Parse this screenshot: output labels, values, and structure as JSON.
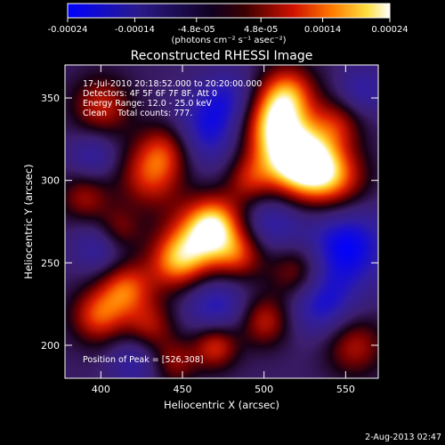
{
  "chart_data": {
    "type": "heatmap",
    "title": "Reconstructed RHESSI Image",
    "xlabel": "Heliocentric X (arcsec)",
    "ylabel": "Heliocentric Y (arcsec)",
    "xlim": [
      378,
      570
    ],
    "ylim": [
      180,
      370
    ],
    "xticks": [
      "400",
      "450",
      "500",
      "550"
    ],
    "xtick_values": [
      400,
      450,
      500,
      550
    ],
    "yticks": [
      "200",
      "250",
      "300",
      "350"
    ],
    "ytick_values": [
      200,
      250,
      300,
      350
    ],
    "colorbar": {
      "range": [
        -0.00024,
        0.00024
      ],
      "ticks": [
        "-0.00024",
        "-0.00014",
        "-4.8e-05",
        "4.8e-05",
        "0.00014",
        "0.00024"
      ],
      "tick_values": [
        -0.00024,
        -0.00014,
        -4.8e-05,
        4.8e-05,
        0.00014,
        0.00024
      ],
      "unit_label": "(photons cm⁻² s⁻¹ asec⁻²)",
      "colors": [
        "#0000ff",
        "#1a1a7a",
        "#000000",
        "#7a0000",
        "#ff3000",
        "#ffa000",
        "#ffff80",
        "#ffffff"
      ]
    },
    "annotations": [
      "17-Jul-2010 20:18:52.000 to 20:20:00.000",
      "Detectors: 4F 5F 6F 7F 8F, Att 0",
      "Energy Range: 12.0 - 25.0 keV",
      "Clean    Total counts: 777."
    ],
    "peak_label": "Position of Peak = [526,308]",
    "peak_position": [
      526,
      308
    ],
    "blobs": [
      {
        "x": 526,
        "y": 309,
        "amp": 1.0,
        "r": 15
      },
      {
        "x": 510,
        "y": 320,
        "amp": 0.8,
        "r": 18
      },
      {
        "x": 505,
        "y": 340,
        "amp": 0.7,
        "r": 14
      },
      {
        "x": 515,
        "y": 355,
        "amp": 0.6,
        "r": 12
      },
      {
        "x": 545,
        "y": 300,
        "amp": 0.6,
        "r": 14
      },
      {
        "x": 460,
        "y": 262,
        "amp": 0.85,
        "r": 16
      },
      {
        "x": 470,
        "y": 275,
        "amp": 0.7,
        "r": 12
      },
      {
        "x": 445,
        "y": 250,
        "amp": 0.6,
        "r": 12
      },
      {
        "x": 485,
        "y": 255,
        "amp": 0.55,
        "r": 11
      },
      {
        "x": 430,
        "y": 303,
        "amp": 0.65,
        "r": 14
      },
      {
        "x": 440,
        "y": 320,
        "amp": 0.55,
        "r": 12
      },
      {
        "x": 415,
        "y": 235,
        "amp": 0.75,
        "r": 12
      },
      {
        "x": 398,
        "y": 218,
        "amp": 0.7,
        "r": 12
      },
      {
        "x": 430,
        "y": 212,
        "amp": 0.5,
        "r": 11
      },
      {
        "x": 470,
        "y": 200,
        "amp": 0.7,
        "r": 10
      },
      {
        "x": 500,
        "y": 215,
        "amp": 0.6,
        "r": 11
      },
      {
        "x": 520,
        "y": 245,
        "amp": 0.55,
        "r": 12
      },
      {
        "x": 555,
        "y": 200,
        "amp": 0.55,
        "r": 13
      },
      {
        "x": 400,
        "y": 345,
        "amp": 0.6,
        "r": 13
      },
      {
        "x": 390,
        "y": 290,
        "amp": 0.5,
        "r": 11
      },
      {
        "x": 410,
        "y": 270,
        "amp": 0.5,
        "r": 10
      },
      {
        "x": 545,
        "y": 335,
        "amp": 0.45,
        "r": 11
      },
      {
        "x": 490,
        "y": 300,
        "amp": 0.4,
        "r": 10
      },
      {
        "x": 445,
        "y": 190,
        "amp": 0.45,
        "r": 10
      },
      {
        "x": 550,
        "y": 260,
        "amp": -0.75,
        "r": 18
      },
      {
        "x": 535,
        "y": 225,
        "amp": -0.55,
        "r": 14
      },
      {
        "x": 470,
        "y": 225,
        "amp": -0.55,
        "r": 14
      },
      {
        "x": 465,
        "y": 330,
        "amp": -0.6,
        "r": 16
      },
      {
        "x": 480,
        "y": 350,
        "amp": -0.45,
        "r": 13
      },
      {
        "x": 400,
        "y": 260,
        "amp": -0.45,
        "r": 12
      },
      {
        "x": 395,
        "y": 315,
        "amp": -0.4,
        "r": 11
      },
      {
        "x": 505,
        "y": 275,
        "amp": -0.45,
        "r": 13
      },
      {
        "x": 420,
        "y": 190,
        "amp": -0.4,
        "r": 11
      },
      {
        "x": 560,
        "y": 355,
        "amp": -0.4,
        "r": 11
      }
    ]
  },
  "footer_date": "2-Aug-2013 02:47"
}
